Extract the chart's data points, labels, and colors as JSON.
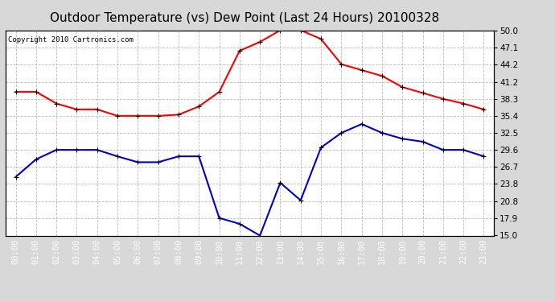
{
  "title": "Outdoor Temperature (vs) Dew Point (Last 24 Hours) 20100328",
  "copyright": "Copyright 2010 Cartronics.com",
  "x_labels": [
    "00:00",
    "01:00",
    "02:00",
    "03:00",
    "04:00",
    "05:00",
    "06:00",
    "07:00",
    "08:00",
    "09:00",
    "10:00",
    "11:00",
    "12:00",
    "13:00",
    "14:00",
    "15:00",
    "16:00",
    "17:00",
    "18:00",
    "19:00",
    "20:00",
    "21:00",
    "22:00",
    "23:00"
  ],
  "temp_data": [
    39.5,
    39.5,
    37.5,
    36.5,
    36.5,
    35.4,
    35.4,
    35.4,
    35.6,
    37.0,
    39.5,
    46.5,
    48.0,
    50.0,
    50.0,
    48.5,
    44.2,
    43.2,
    42.2,
    40.3,
    39.3,
    38.3,
    37.5,
    36.5
  ],
  "dew_data": [
    25.0,
    28.0,
    29.6,
    29.6,
    29.6,
    28.5,
    27.5,
    27.5,
    28.5,
    28.5,
    18.0,
    17.0,
    15.0,
    24.0,
    21.0,
    30.0,
    32.5,
    34.0,
    32.5,
    31.5,
    31.0,
    29.6,
    29.6,
    28.5
  ],
  "temp_color": "#ff0000",
  "dew_color": "#0000cc",
  "bg_color": "#d8d8d8",
  "plot_bg": "#ffffff",
  "ylim": [
    15.0,
    50.0
  ],
  "yticks": [
    15.0,
    17.9,
    20.8,
    23.8,
    26.7,
    29.6,
    32.5,
    35.4,
    38.3,
    41.2,
    44.2,
    47.1,
    50.0
  ],
  "grid_color": "#bbbbbb",
  "title_fontsize": 11,
  "tick_fontsize": 7.5,
  "marker": "+",
  "markersize": 5,
  "linewidth": 1.5,
  "bottom_bar_color": "#000000",
  "xlabel_color": "#ffffff"
}
